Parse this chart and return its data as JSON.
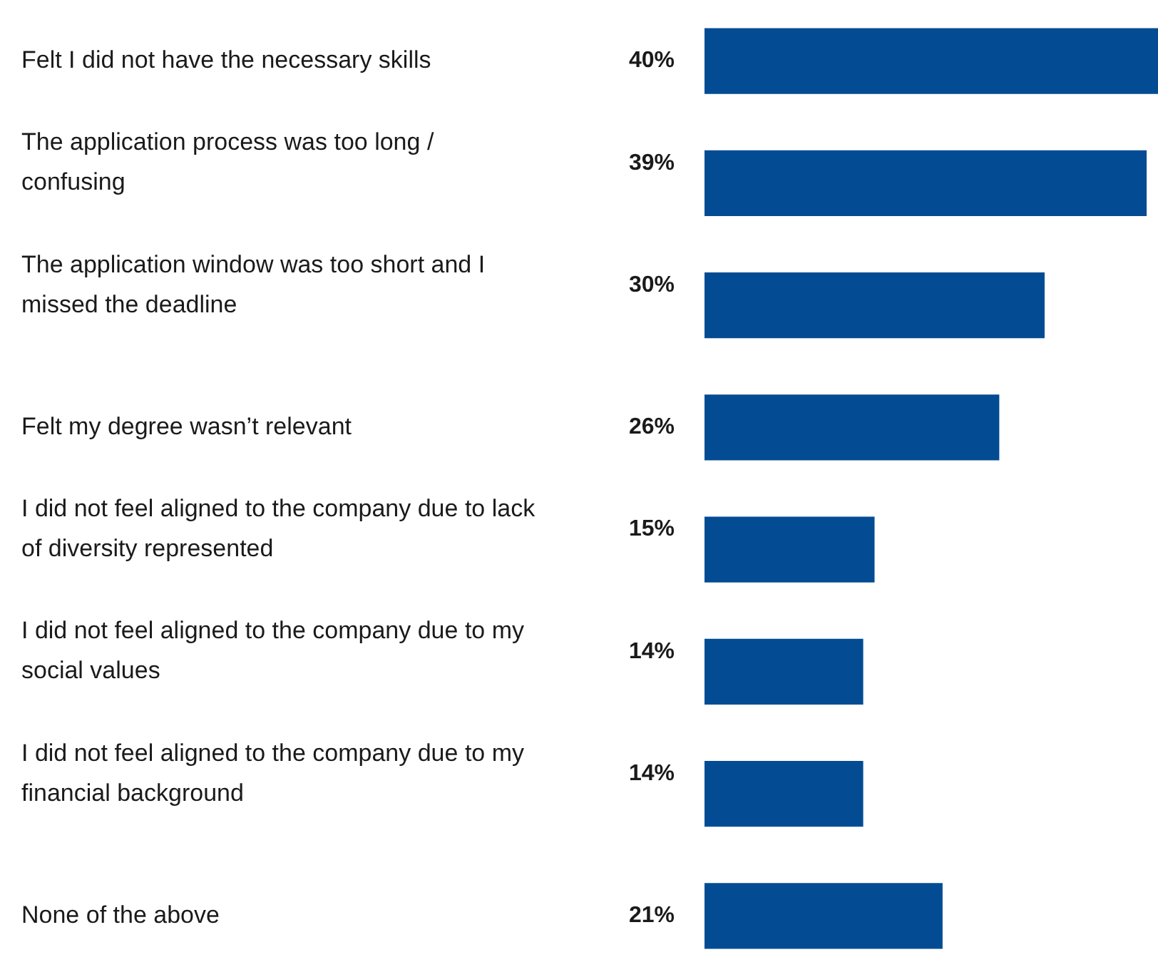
{
  "chart_data": {
    "type": "bar",
    "orientation": "horizontal",
    "color": "#034c93",
    "value_labels": [
      "40%",
      "39%",
      "30%",
      "26%",
      "15%",
      "14%",
      "14%",
      "21%"
    ],
    "categories": [
      "Felt I did not have the necessary skills",
      "The application process was too long / confusing",
      "The application window was too short and I missed the deadline",
      "Felt my degree wasn’t relevant",
      "I did not feel aligned to the company due to lack of diversity represented",
      "I did not feel aligned to the company due to my social values",
      "I did not feel aligned to the company due to my financial background",
      "None of the above"
    ],
    "values": [
      40,
      39,
      30,
      26,
      15,
      14,
      14,
      21
    ]
  }
}
